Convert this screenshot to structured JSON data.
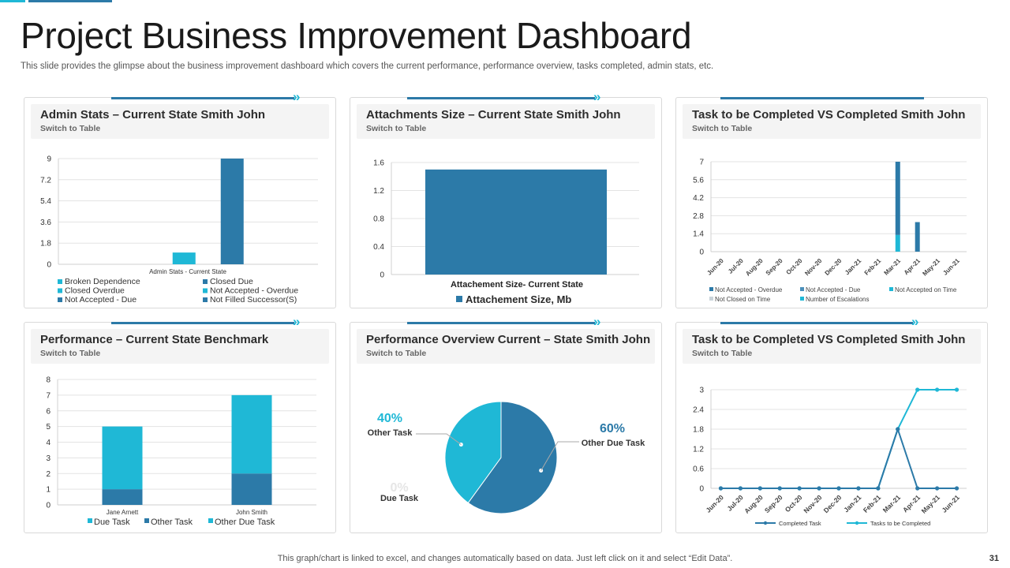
{
  "page": {
    "title": "Project Business Improvement Dashboard",
    "subtitle": "This slide provides the glimpse about the business improvement dashboard which covers the current performance, performance overview, tasks completed, admin stats, etc.",
    "footer": "This graph/chart is linked to excel,  and changes automatically based on data. Just left click on it and select “Edit Data”.",
    "page_number": "31"
  },
  "colors": {
    "accent_dark": "#2c7aa8",
    "accent_light": "#1fb8d6",
    "grid": "#e3e3e3"
  },
  "panels": [
    {
      "title": "Admin Stats – Current State Smith John",
      "switch_label": "Switch to Table"
    },
    {
      "title": "Attachments Size – Current State Smith John",
      "switch_label": "Switch to Table"
    },
    {
      "title": "Task to be Completed VS Completed Smith John",
      "switch_label": "Switch to Table"
    },
    {
      "title": "Performance – Current State Benchmark",
      "switch_label": "Switch to Table"
    },
    {
      "title": "Performance Overview Current – State Smith John",
      "switch_label": "Switch to Table"
    },
    {
      "title": "Task to be Completed VS Completed Smith John",
      "switch_label": "Switch to Table"
    }
  ],
  "chart_data": [
    {
      "type": "bar",
      "title": "Admin Stats – Current State Smith John",
      "categories": [
        "Admin Stats - Current State"
      ],
      "ylim": [
        0,
        9
      ],
      "yticks": [
        "0",
        "1.8",
        "3.6",
        "5.4",
        "7.2",
        "9"
      ],
      "series": [
        {
          "name": "Broken Dependence",
          "values": [
            0
          ],
          "color": "#1fb8d6"
        },
        {
          "name": "Closed Due",
          "values": [
            0
          ],
          "color": "#2c7aa8"
        },
        {
          "name": "Closed Overdue",
          "values": [
            0
          ],
          "color": "#1fb8d6"
        },
        {
          "name": "Not Accepted - Overdue",
          "values": [
            1
          ],
          "color": "#1fb8d6"
        },
        {
          "name": "Not Accepted - Due",
          "values": [
            0
          ],
          "color": "#2c7aa8"
        },
        {
          "name": "Not Filled Successor(S)",
          "values": [
            9
          ],
          "color": "#2c7aa8"
        }
      ]
    },
    {
      "type": "bar",
      "title": "Attachments Size – Current State Smith John",
      "categories": [
        "Attachement Size- Current State"
      ],
      "ylim": [
        0,
        1.6
      ],
      "yticks": [
        "0",
        "0.4",
        "0.8",
        "1.2",
        "1.6"
      ],
      "series": [
        {
          "name": "Attachement Size, Mb",
          "values": [
            1.5
          ],
          "color": "#2c7aa8"
        }
      ]
    },
    {
      "type": "bar",
      "stacked": true,
      "title": "Task to be Completed VS Completed Smith John",
      "categories": [
        "Jun-20",
        "Jul-20",
        "Aug-20",
        "Sep-20",
        "Oct-20",
        "Nov-20",
        "Dec-20",
        "Jan-21",
        "Feb-21",
        "Mar-21",
        "Apr-21",
        "May-21",
        "Jun-21"
      ],
      "ylim": [
        0,
        7
      ],
      "yticks": [
        "0",
        "1.4",
        "2.8",
        "4.2",
        "5.6",
        "7"
      ],
      "series": [
        {
          "name": "Not Accepted - Overdue",
          "values": [
            0,
            0,
            0,
            0,
            0,
            0,
            0,
            0,
            0,
            5.7,
            2.3,
            0,
            0
          ],
          "color": "#2c7aa8"
        },
        {
          "name": "Not Accepted - Due",
          "values": [
            0,
            0,
            0,
            0,
            0,
            0,
            0,
            0,
            0,
            0,
            0,
            0,
            0
          ],
          "color": "#4a8fba"
        },
        {
          "name": "Not Accepted on Time",
          "values": [
            0,
            0,
            0,
            0,
            0,
            0,
            0,
            0,
            0,
            0,
            0,
            0,
            0
          ],
          "color": "#1fb8d6"
        },
        {
          "name": "Not Closed on Time",
          "values": [
            0,
            0,
            0,
            0,
            0,
            0,
            0,
            0,
            0,
            0,
            0,
            0,
            0
          ],
          "color": "#c9d3da"
        },
        {
          "name": "Number of Escalations",
          "values": [
            0,
            0,
            0,
            0,
            0,
            0,
            0,
            0,
            0,
            1.3,
            0,
            0,
            0
          ],
          "color": "#1fb8d6"
        }
      ]
    },
    {
      "type": "bar",
      "stacked": true,
      "title": "Performance – Current State Benchmark",
      "categories": [
        "Jane Arnett",
        "John Smith"
      ],
      "ylim": [
        0,
        8
      ],
      "yticks": [
        "0",
        "1",
        "2",
        "3",
        "4",
        "5",
        "6",
        "7",
        "8"
      ],
      "series": [
        {
          "name": "Due Task",
          "values": [
            0,
            0
          ],
          "color": "#1fb8d6"
        },
        {
          "name": "Other Task",
          "values": [
            1,
            2
          ],
          "color": "#2c7aa8"
        },
        {
          "name": "Other Due Task",
          "values": [
            4,
            5
          ],
          "color": "#1fb8d6"
        }
      ]
    },
    {
      "type": "pie",
      "title": "Performance Overview Current – State Smith John",
      "slices": [
        {
          "label": "Other Due Task",
          "pct_label": "60%",
          "value": 60,
          "color": "#2c7aa8"
        },
        {
          "label": "Other Task",
          "pct_label": "40%",
          "value": 40,
          "color": "#1fb8d6"
        },
        {
          "label": "Due Task",
          "pct_label": "0%",
          "value": 0,
          "color": "#e6e6e6"
        }
      ]
    },
    {
      "type": "line",
      "title": "Task to be Completed VS Completed Smith John",
      "categories": [
        "Jun-20",
        "Jul-20",
        "Aug-20",
        "Sep-20",
        "Oct-20",
        "Nov-20",
        "Dec-20",
        "Jan-21",
        "Feb-21",
        "Mar-21",
        "Apr-21",
        "May-21",
        "Jun-21"
      ],
      "ylim": [
        0,
        3
      ],
      "yticks": [
        "0",
        "0.6",
        "1.2",
        "1.8",
        "2.4",
        "3"
      ],
      "series": [
        {
          "name": "Completed Task",
          "values": [
            0,
            0,
            0,
            0,
            0,
            0,
            0,
            0,
            0,
            1.8,
            0,
            0,
            0
          ],
          "color": "#2c7aa8"
        },
        {
          "name": "Tasks to be Completed",
          "values": [
            0,
            0,
            0,
            0,
            0,
            0,
            0,
            0,
            0,
            1.8,
            3,
            3,
            3
          ],
          "color": "#1fb8d6"
        }
      ]
    }
  ]
}
